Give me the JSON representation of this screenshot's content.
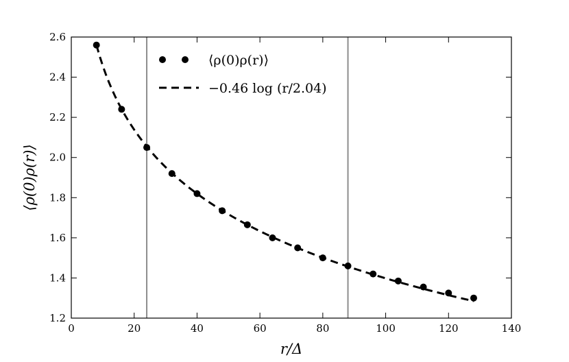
{
  "chart_data": {
    "type": "scatter",
    "xlabel": "r/Δ",
    "ylabel": "⟨ρ(0)ρ(r)⟩",
    "xlim": [
      0,
      140
    ],
    "ylim": [
      1.2,
      2.6
    ],
    "xticks": [
      "0",
      "20",
      "40",
      "60",
      "80",
      "100",
      "120",
      "140"
    ],
    "yticks": [
      "1.2",
      "1.4",
      "1.6",
      "1.8",
      "2.0",
      "2.2",
      "2.4",
      "2.6"
    ],
    "grid": false,
    "legend_position": "top-left",
    "vertical_lines": [
      24,
      88
    ],
    "series": [
      {
        "name": "⟨ρ(0)ρ(r)⟩",
        "style": "markers",
        "x": [
          8,
          16,
          24,
          32,
          40,
          48,
          56,
          64,
          72,
          80,
          88,
          96,
          104,
          112,
          120,
          128
        ],
        "y": [
          2.56,
          2.24,
          2.05,
          1.92,
          1.82,
          1.735,
          1.665,
          1.6,
          1.55,
          1.5,
          1.46,
          1.42,
          1.385,
          1.355,
          1.325,
          1.3
        ]
      },
      {
        "name": "−0.46 log (r/2.04)",
        "style": "dashed-line",
        "function": {
          "a": -0.46,
          "b": 2.04,
          "x_start": 8,
          "x_end": 128
        }
      }
    ],
    "colors": {
      "markers": "#000000",
      "fit": "#000000",
      "vlines": "#8c8c8c",
      "axes": "#000000"
    }
  }
}
